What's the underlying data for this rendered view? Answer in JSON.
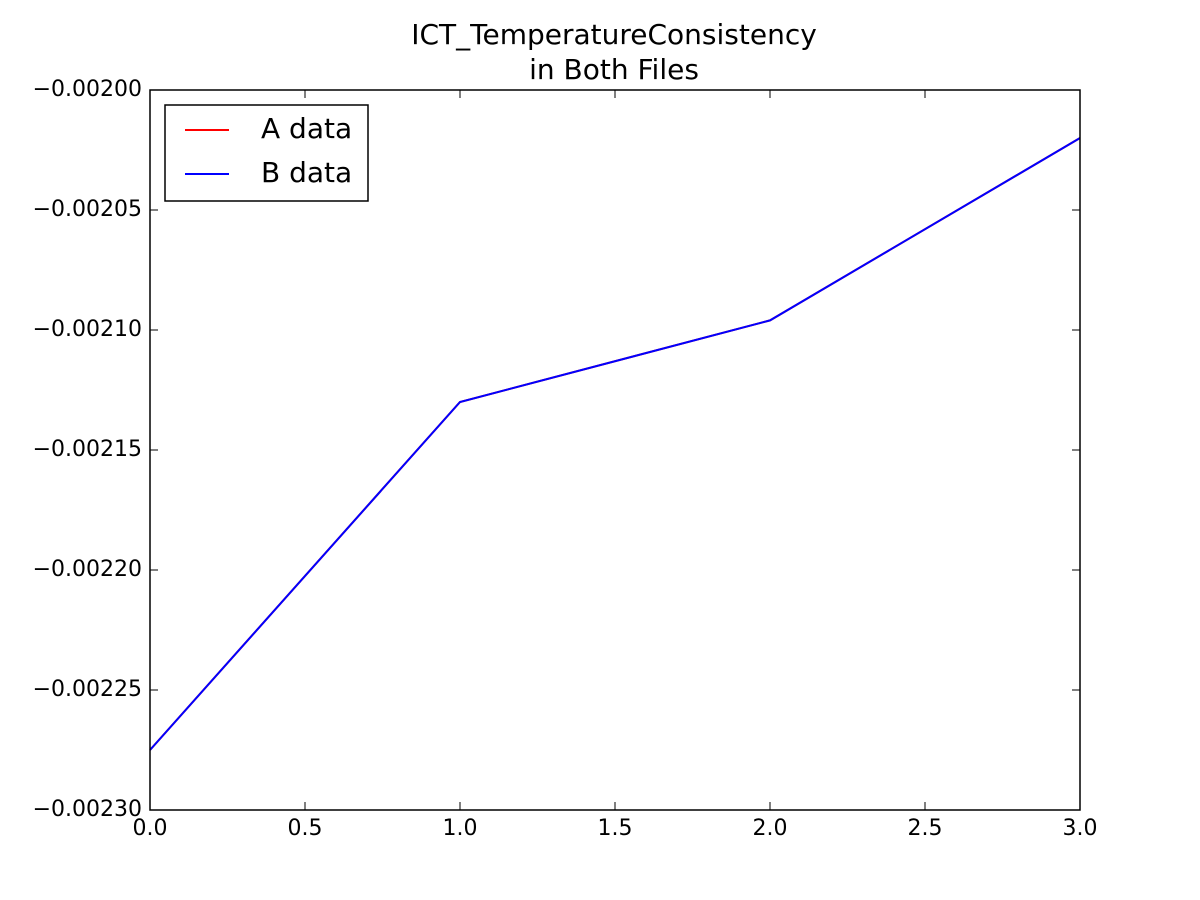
{
  "chart_data": {
    "type": "line",
    "title": [
      "ICT_TemperatureConsistency",
      "in Both Files"
    ],
    "x": [
      0,
      1,
      2,
      3
    ],
    "series": [
      {
        "name": "A data",
        "color": "#ff0000",
        "values": [
          -0.002275,
          -0.00213,
          -0.002096,
          -0.00202
        ]
      },
      {
        "name": "B data",
        "color": "#0000ff",
        "values": [
          -0.002275,
          -0.00213,
          -0.002096,
          -0.00202
        ]
      }
    ],
    "xlim": [
      0,
      3
    ],
    "xticks": [
      {
        "value": 0,
        "label": "0.0"
      },
      {
        "value": 0.5,
        "label": "0.5"
      },
      {
        "value": 1,
        "label": "1.0"
      },
      {
        "value": 1.5,
        "label": "1.5"
      },
      {
        "value": 2,
        "label": "2.0"
      },
      {
        "value": 2.5,
        "label": "2.5"
      },
      {
        "value": 3,
        "label": "3.0"
      }
    ],
    "ylim": [
      -0.0023,
      -0.002
    ],
    "yticks": [
      {
        "value": -0.0023,
        "label": "−0.00230"
      },
      {
        "value": -0.00225,
        "label": "−0.00225"
      },
      {
        "value": -0.0022,
        "label": "−0.00220"
      },
      {
        "value": -0.00215,
        "label": "−0.00215"
      },
      {
        "value": -0.0021,
        "label": "−0.00210"
      },
      {
        "value": -0.00205,
        "label": "−0.00205"
      },
      {
        "value": -0.002,
        "label": "−0.00200"
      }
    ],
    "grid": false,
    "legend": "upper-left"
  }
}
